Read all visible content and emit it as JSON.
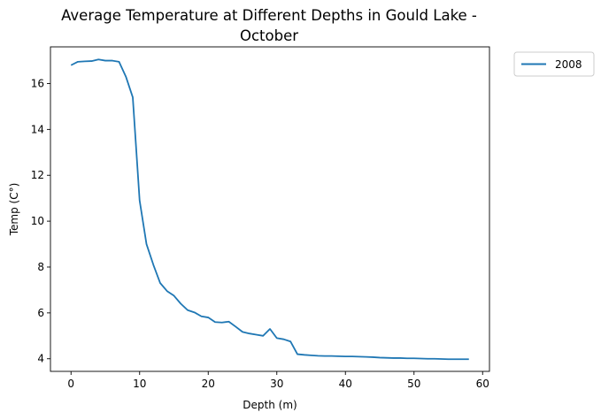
{
  "chart_data": {
    "type": "line",
    "title": "Average Temperature at Different Depths in Gould Lake -\nOctober",
    "xlabel": "Depth (m)",
    "ylabel": "Temp (C°)",
    "xlim": [
      -3,
      61
    ],
    "ylim": [
      3.45,
      17.6
    ],
    "xticks": [
      0,
      10,
      20,
      30,
      40,
      50,
      60
    ],
    "yticks": [
      4,
      6,
      8,
      10,
      12,
      14,
      16
    ],
    "grid": false,
    "legend_position": "outside top-right",
    "colors": {
      "series": "#1f77b4"
    },
    "series": [
      {
        "name": "2008",
        "x": [
          0,
          1,
          2,
          3,
          4,
          5,
          6,
          7,
          8,
          9,
          10,
          11,
          12,
          13,
          14,
          15,
          16,
          17,
          18,
          19,
          20,
          21,
          22,
          23,
          24,
          25,
          26,
          27,
          28,
          29,
          30,
          31,
          32,
          33,
          34,
          35,
          36,
          37,
          38,
          39,
          40,
          41,
          42,
          43,
          44,
          45,
          46,
          47,
          48,
          49,
          50,
          51,
          52,
          53,
          54,
          55,
          56,
          57,
          58
        ],
        "values": [
          16.8,
          16.95,
          16.97,
          16.98,
          17.05,
          17.0,
          17.0,
          16.95,
          16.3,
          15.4,
          10.9,
          9.0,
          8.1,
          7.3,
          6.95,
          6.75,
          6.4,
          6.12,
          6.02,
          5.85,
          5.8,
          5.6,
          5.58,
          5.62,
          5.4,
          5.17,
          5.1,
          5.05,
          5.0,
          5.3,
          4.9,
          4.85,
          4.75,
          4.2,
          4.17,
          4.15,
          4.13,
          4.12,
          4.12,
          4.11,
          4.1,
          4.1,
          4.09,
          4.08,
          4.07,
          4.05,
          4.04,
          4.03,
          4.03,
          4.02,
          4.02,
          4.01,
          4.0,
          4.0,
          3.99,
          3.98,
          3.98,
          3.98,
          3.98
        ]
      }
    ]
  }
}
